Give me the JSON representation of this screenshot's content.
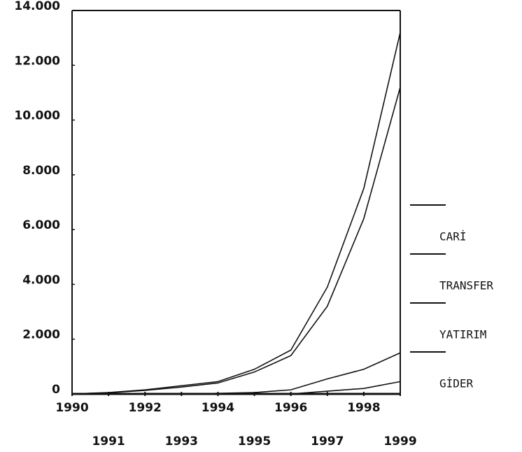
{
  "chart_data": {
    "type": "line",
    "x": [
      1990,
      1991,
      1992,
      1993,
      1994,
      1995,
      1996,
      1997,
      1998,
      1999
    ],
    "series": [
      {
        "name": "CARİ",
        "color": "#111111",
        "values": [
          0,
          50,
          150,
          300,
          450,
          900,
          1600,
          3900,
          7500,
          13200
        ]
      },
      {
        "name": "TRANSFER",
        "color": "#111111",
        "values": [
          0,
          40,
          130,
          250,
          400,
          800,
          1400,
          3200,
          6400,
          11200
        ]
      },
      {
        "name": "YATIRIM",
        "color": "#111111",
        "values": [
          0,
          0,
          0,
          0,
          20,
          50,
          150,
          550,
          900,
          1500
        ]
      },
      {
        "name": "GİDER",
        "color": "#111111",
        "values": [
          0,
          0,
          0,
          0,
          0,
          0,
          0,
          100,
          200,
          450
        ]
      }
    ],
    "xlim": [
      1990,
      1999
    ],
    "xticks": [
      1990,
      1991,
      1992,
      1993,
      1994,
      1995,
      1996,
      1997,
      1998,
      1999
    ],
    "ylim": [
      0,
      14000
    ],
    "yticks": [
      0,
      {
        "value": 2000,
        "label": "2.000"
      },
      {
        "value": 4000,
        "label": "4.000"
      },
      {
        "value": 6000,
        "label": "6.000"
      },
      {
        "value": 8000,
        "label": "8.000"
      },
      {
        "value": 10000,
        "label": "10.000"
      },
      {
        "value": 12000,
        "label": "12.000"
      },
      {
        "value": 14000,
        "label": "14.000"
      }
    ],
    "grid": false,
    "legend": "right"
  }
}
